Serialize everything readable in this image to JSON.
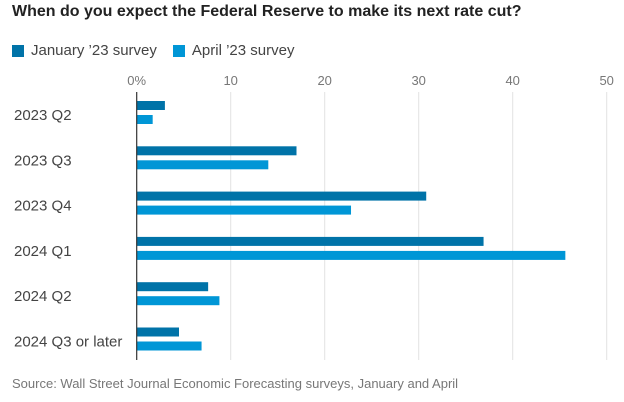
{
  "chart_data": {
    "type": "bar",
    "orientation": "horizontal",
    "title": "When do you expect the Federal Reserve to make its next rate cut?",
    "categories": [
      "2023 Q2",
      "2023 Q3",
      "2023 Q4",
      "2024 Q1",
      "2024 Q2",
      "2024 Q3 or later"
    ],
    "series": [
      {
        "name": "January ’23 survey",
        "color": "#0073a8",
        "values": [
          3,
          17,
          30.8,
          36.9,
          7.6,
          4.5
        ]
      },
      {
        "name": "April ’23 survey",
        "color": "#0096d6",
        "values": [
          1.7,
          14,
          22.8,
          45.6,
          8.8,
          6.9
        ]
      }
    ],
    "xticks": [
      "0%",
      "10",
      "20",
      "30",
      "40",
      "50"
    ],
    "xlim": [
      0,
      50
    ],
    "grid": true,
    "legend_position": "top-left",
    "source": "Source: Wall Street Journal Economic Forecasting surveys, January and April"
  }
}
